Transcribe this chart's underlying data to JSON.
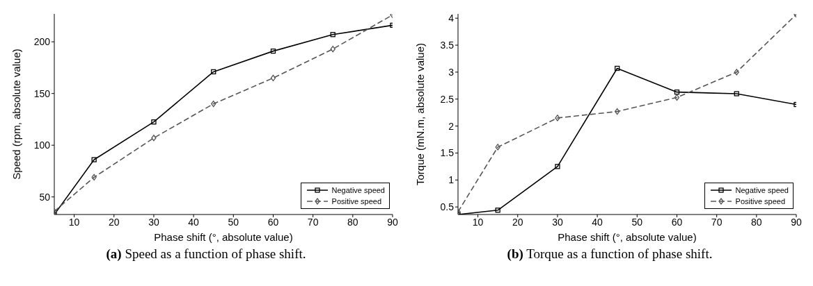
{
  "chart_data": [
    {
      "type": "line",
      "xlabel": "Phase shift (°, absolute value)",
      "ylabel": "Speed (rpm, absolute value)",
      "x": [
        5,
        15,
        30,
        45,
        60,
        75,
        90
      ],
      "xlim": [
        5,
        90
      ],
      "xticks": [
        10,
        20,
        30,
        40,
        50,
        60,
        70,
        80,
        90
      ],
      "ylim": [
        33,
        227
      ],
      "yticks": [
        50,
        100,
        150,
        200
      ],
      "grid": false,
      "legend": "bottom right",
      "series": [
        {
          "name": "Negative speed",
          "color": "#000000",
          "marker": "square",
          "line_style": "solid",
          "values": [
            33,
            86,
            122.5,
            171,
            191,
            207,
            216
          ]
        },
        {
          "name": "Positive speed",
          "color": "#555555",
          "marker": "diamond",
          "line_style": "dashed",
          "values": [
            36,
            69,
            107,
            140,
            165,
            193,
            226
          ]
        }
      ],
      "annotations": [
        "(a) Speed as a function of phase shift."
      ]
    },
    {
      "type": "line",
      "xlabel": "Phase shift (°, absolute value)",
      "ylabel": "Torque (mN.m, absolute value)",
      "x": [
        5,
        15,
        30,
        45,
        60,
        75,
        90
      ],
      "xlim": [
        5,
        90
      ],
      "xticks": [
        10,
        20,
        30,
        40,
        50,
        60,
        70,
        80,
        90
      ],
      "ylim": [
        0.36,
        4.08
      ],
      "yticks": [
        0.5,
        1,
        1.5,
        2,
        2.5,
        3,
        3.5,
        4
      ],
      "grid": false,
      "legend": "bottom right",
      "series": [
        {
          "name": "Negative speed",
          "color": "#000000",
          "marker": "square",
          "line_style": "solid",
          "values": [
            0.36,
            0.44,
            1.25,
            3.07,
            2.63,
            2.6,
            2.4
          ]
        },
        {
          "name": "Positive speed",
          "color": "#555555",
          "marker": "diamond",
          "line_style": "dashed",
          "values": [
            0.41,
            1.61,
            2.15,
            2.27,
            2.53,
            3.0,
            4.07
          ]
        }
      ],
      "annotations": [
        "(b) Torque as a function of phase shift."
      ]
    }
  ]
}
